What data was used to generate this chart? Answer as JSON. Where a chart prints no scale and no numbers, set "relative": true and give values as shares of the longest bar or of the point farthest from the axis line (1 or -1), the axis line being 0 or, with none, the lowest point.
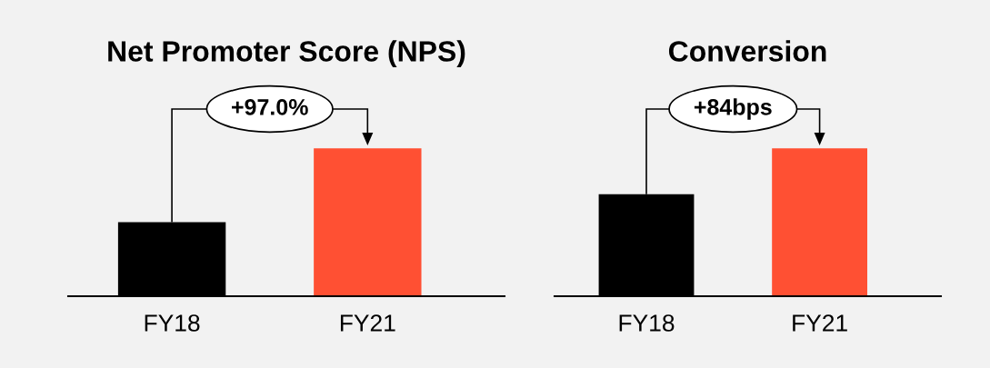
{
  "chart_data": [
    {
      "type": "bar",
      "title": "Net Promoter Score (NPS)",
      "categories": [
        "FY18",
        "FY21"
      ],
      "values": [
        0.5,
        1
      ],
      "colors": [
        "#000000",
        "#ff5033"
      ],
      "relative": true,
      "annotations": [
        "+97.0%"
      ],
      "grid": false
    },
    {
      "type": "bar",
      "title": "Conversion",
      "categories": [
        "FY18",
        "FY21"
      ],
      "values": [
        0.69,
        1
      ],
      "colors": [
        "#000000",
        "#ff5033"
      ],
      "relative": true,
      "annotations": [
        "+84bps"
      ],
      "grid": false
    }
  ]
}
